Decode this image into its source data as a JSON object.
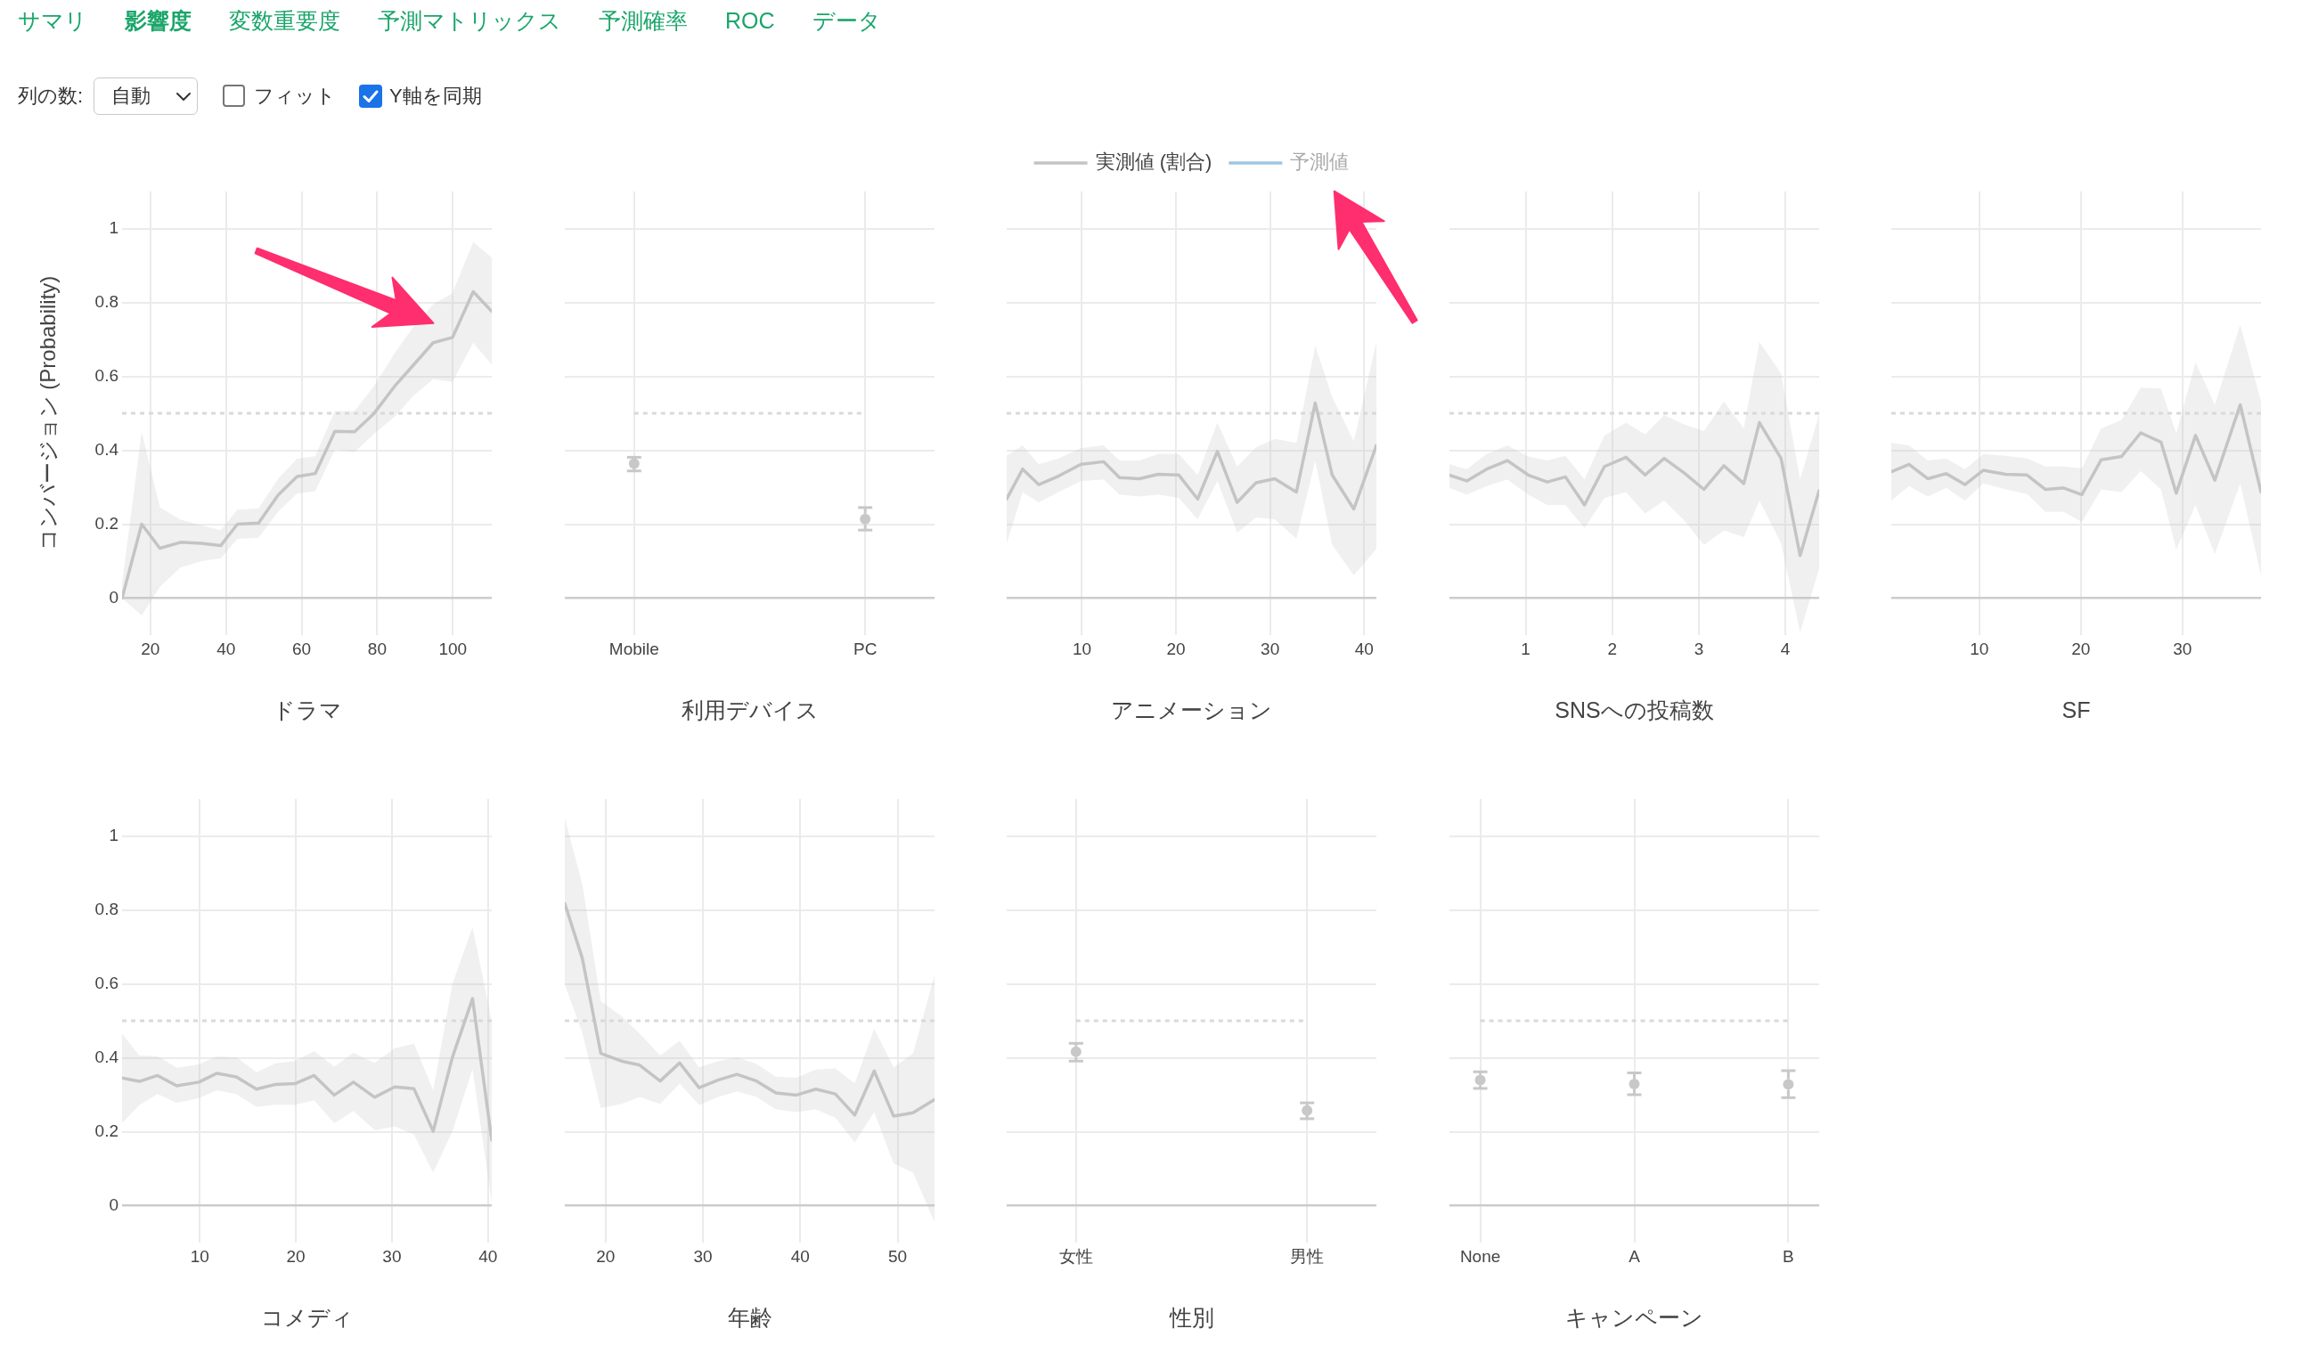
{
  "chart_data": [
    {
      "type": "other",
      "annotations": [
        "サマリ",
        "影響度",
        "変数重要度",
        "予測マトリックス",
        "予測確率",
        "ROC",
        "データ"
      ]
    },
    {
      "type": "other",
      "annotations": [
        "列の数:",
        "自動",
        "フィット",
        "Y軸を同期"
      ]
    },
    {
      "type": "line",
      "xlabel": "ドラマ",
      "ylabel": "コンバージョン (Probability)",
      "x": [
        12.5,
        17.7,
        22.5,
        28,
        33.5,
        38.6,
        43,
        48.6,
        53.8,
        58.8,
        63.6,
        68.8,
        74,
        79.1,
        84.6,
        89.7,
        94.8,
        99.9,
        105.4,
        110.3
      ],
      "series": [
        {
          "color": "#c4c4c4",
          "values": [
            0,
            0.2,
            0.135,
            0.151,
            0.148,
            0.142,
            0.2,
            0.203,
            0.279,
            0.329,
            0.337,
            0.451,
            0.45,
            0.499,
            0.573,
            0.632,
            0.691,
            0.705,
            0.829,
            0.776
          ],
          "lower": [
            0,
            -0.047,
            0.031,
            0.083,
            0.1,
            0.108,
            0.16,
            0.163,
            0.234,
            0.283,
            0.289,
            0.402,
            0.395,
            0.444,
            0.491,
            0.549,
            0.592,
            0.585,
            0.691,
            0.632
          ],
          "upper": [
            0.04,
            0.45,
            0.246,
            0.212,
            0.197,
            0.184,
            0.239,
            0.243,
            0.323,
            0.377,
            0.384,
            0.506,
            0.506,
            0.573,
            0.662,
            0.736,
            0.795,
            0.825,
            0.963,
            0.921
          ]
        }
      ],
      "xlim": [
        12.5,
        110.3
      ],
      "xticks": [
        20,
        40,
        60,
        80,
        100
      ],
      "ylim": [
        -0.1,
        1.1
      ],
      "yticks": [
        0,
        0.2,
        0.4,
        0.6,
        0.8,
        1
      ],
      "grid": true,
      "ref_lines": [
        {
          "axis": "y",
          "value": 0.5,
          "color": "#d9d9d9",
          "line_style": "dotted"
        }
      ]
    },
    {
      "type": "scatter",
      "xlabel": "利用デバイス",
      "categories": [
        "Mobile",
        "PC"
      ],
      "values": [
        0.364,
        0.214
      ],
      "errors": [
        [
          0.344,
          0.381
        ],
        [
          0.184,
          0.245
        ]
      ],
      "color": "#c8c8c8",
      "marker": "circle",
      "ylim": [
        -0.1,
        1.1
      ],
      "yticks": [
        0,
        0.2,
        0.4,
        0.6,
        0.8,
        1
      ],
      "tick_labels": "x",
      "grid": true,
      "ref_lines": [
        {
          "axis": "y",
          "value": 0.5,
          "color": "#d9d9d9",
          "line_style": "dotted"
        }
      ]
    },
    {
      "type": "line",
      "xlabel": "アニメーション",
      "legend": "top",
      "x": [
        2,
        3.7,
        5.4,
        7.5,
        9.9,
        12.3,
        14,
        16.1,
        18.1,
        20.3,
        22.3,
        24.4,
        26.5,
        28.5,
        30.5,
        32.8,
        34.8,
        36.6,
        38.9,
        41.3
      ],
      "series": [
        {
          "name": "実測値 (割合)",
          "color": "#c4c4c4",
          "values": [
            0.268,
            0.349,
            0.307,
            0.33,
            0.362,
            0.369,
            0.326,
            0.323,
            0.335,
            0.333,
            0.268,
            0.397,
            0.259,
            0.312,
            0.323,
            0.287,
            0.528,
            0.333,
            0.241,
            0.413
          ],
          "lower": [
            0.149,
            0.287,
            0.259,
            0.287,
            0.317,
            0.321,
            0.28,
            0.275,
            0.28,
            0.271,
            0.213,
            0.317,
            0.177,
            0.218,
            0.213,
            0.161,
            0.372,
            0.144,
            0.062,
            0.133
          ],
          "upper": [
            0.385,
            0.413,
            0.362,
            0.378,
            0.406,
            0.413,
            0.372,
            0.372,
            0.39,
            0.39,
            0.333,
            0.475,
            0.356,
            0.408,
            0.431,
            0.42,
            0.683,
            0.544,
            0.424,
            0.693
          ]
        },
        {
          "name": "予測値",
          "color": "#9fc6e2",
          "values": [
            null,
            null,
            null,
            null,
            null,
            null,
            null,
            null,
            null,
            null,
            null,
            null,
            null,
            null,
            null,
            null,
            null,
            null,
            null,
            null
          ]
        }
      ],
      "xlim": [
        2,
        41.3
      ],
      "xticks": [
        10,
        20,
        30,
        40
      ],
      "ylim": [
        -0.1,
        1.1
      ],
      "yticks": [
        0,
        0.2,
        0.4,
        0.6,
        0.8,
        1
      ],
      "tick_labels": "x",
      "grid": true,
      "ref_lines": [
        {
          "axis": "y",
          "value": 0.5,
          "color": "#d9d9d9",
          "line_style": "dotted"
        }
      ]
    },
    {
      "type": "line",
      "xlabel": "SNSへの投稿数",
      "x": [
        0.12,
        0.32,
        0.55,
        0.79,
        1.03,
        1.25,
        1.46,
        1.68,
        1.91,
        2.16,
        2.38,
        2.6,
        2.83,
        3.06,
        3.29,
        3.52,
        3.7,
        3.95,
        4.17,
        4.39
      ],
      "series": [
        {
          "color": "#c4c4c4",
          "values": [
            0.333,
            0.317,
            0.349,
            0.372,
            0.333,
            0.314,
            0.328,
            0.252,
            0.356,
            0.381,
            0.333,
            0.378,
            0.339,
            0.294,
            0.358,
            0.31,
            0.475,
            0.378,
            0.115,
            0.291
          ],
          "lower": [
            0.298,
            0.28,
            0.303,
            0.321,
            0.28,
            0.252,
            0.252,
            0.19,
            0.271,
            0.287,
            0.229,
            0.264,
            0.211,
            0.144,
            0.183,
            0.165,
            0.264,
            0.149,
            -0.092,
            0.08
          ],
          "upper": [
            0.362,
            0.349,
            0.39,
            0.413,
            0.383,
            0.372,
            0.385,
            0.321,
            0.44,
            0.475,
            0.443,
            0.495,
            0.47,
            0.452,
            0.532,
            0.459,
            0.693,
            0.608,
            0.321,
            0.498
          ]
        }
      ],
      "xlim": [
        0.12,
        4.39
      ],
      "xticks": [
        1,
        2,
        3,
        4
      ],
      "ylim": [
        -0.1,
        1.1
      ],
      "yticks": [
        0,
        0.2,
        0.4,
        0.6,
        0.8,
        1
      ],
      "tick_labels": "x",
      "grid": true,
      "ref_lines": [
        {
          "axis": "y",
          "value": 0.5,
          "color": "#d9d9d9",
          "line_style": "dotted"
        }
      ]
    },
    {
      "type": "line",
      "xlabel": "SF",
      "x": [
        1.33,
        3.08,
        4.92,
        6.75,
        8.58,
        10.4,
        12.6,
        14.7,
        16.5,
        18.3,
        20.1,
        22,
        24,
        25.9,
        27.9,
        29.4,
        31.3,
        33.2,
        35.7,
        37.75
      ],
      "series": [
        {
          "color": "#c4c4c4",
          "values": [
            0.342,
            0.362,
            0.323,
            0.337,
            0.307,
            0.346,
            0.335,
            0.333,
            0.294,
            0.298,
            0.28,
            0.374,
            0.383,
            0.447,
            0.422,
            0.284,
            0.44,
            0.319,
            0.523,
            0.287
          ],
          "lower": [
            0.264,
            0.303,
            0.275,
            0.298,
            0.264,
            0.31,
            0.294,
            0.282,
            0.234,
            0.234,
            0.206,
            0.294,
            0.287,
            0.344,
            0.294,
            0.131,
            0.252,
            0.119,
            0.31,
            0.062
          ],
          "upper": [
            0.42,
            0.413,
            0.372,
            0.378,
            0.349,
            0.39,
            0.385,
            0.378,
            0.356,
            0.356,
            0.351,
            0.459,
            0.482,
            0.569,
            0.567,
            0.445,
            0.638,
            0.523,
            0.739,
            0.532
          ]
        }
      ],
      "xlim": [
        1.33,
        37.75
      ],
      "xticks": [
        10,
        20,
        30
      ],
      "ylim": [
        -0.1,
        1.1
      ],
      "yticks": [
        0,
        0.2,
        0.4,
        0.6,
        0.8,
        1
      ],
      "tick_labels": "x",
      "grid": true,
      "ref_lines": [
        {
          "axis": "y",
          "value": 0.5,
          "color": "#d9d9d9",
          "line_style": "dotted"
        }
      ]
    },
    {
      "type": "line",
      "xlabel": "コメディ",
      "x": [
        1.9,
        3.7,
        5.6,
        7.6,
        9.9,
        11.8,
        13.8,
        15.9,
        17.9,
        19.9,
        21.9,
        24,
        26,
        28.2,
        30.3,
        32.3,
        34.3,
        36.3,
        38.4,
        40.4
      ],
      "series": [
        {
          "color": "#c4c4c4",
          "values": [
            0.345,
            0.336,
            0.352,
            0.324,
            0.334,
            0.358,
            0.348,
            0.315,
            0.328,
            0.33,
            0.352,
            0.299,
            0.334,
            0.293,
            0.321,
            0.316,
            0.201,
            0.401,
            0.56,
            0.177
          ],
          "lower": [
            0.223,
            0.272,
            0.302,
            0.278,
            0.291,
            0.312,
            0.302,
            0.267,
            0.273,
            0.272,
            0.285,
            0.223,
            0.256,
            0.204,
            0.214,
            0.193,
            0.089,
            0.201,
            0.369,
            0.007
          ],
          "upper": [
            0.465,
            0.406,
            0.404,
            0.373,
            0.382,
            0.404,
            0.401,
            0.361,
            0.385,
            0.391,
            0.418,
            0.376,
            0.413,
            0.386,
            0.426,
            0.438,
            0.312,
            0.599,
            0.753,
            0.498
          ]
        }
      ],
      "xlim": [
        1.9,
        40.4
      ],
      "xticks": [
        10,
        20,
        30,
        40
      ],
      "ylim": [
        -0.1,
        1.1
      ],
      "yticks": [
        0,
        0.2,
        0.4,
        0.6,
        0.8,
        1
      ],
      "grid": true,
      "ref_lines": [
        {
          "axis": "y",
          "value": 0.5,
          "color": "#d9d9d9",
          "line_style": "dotted"
        }
      ]
    },
    {
      "type": "line",
      "xlabel": "年齢",
      "x": [
        15.8,
        17.6,
        19.5,
        21.6,
        23.5,
        25.6,
        27.6,
        29.6,
        31.6,
        33.5,
        35.5,
        37.5,
        39.6,
        41.6,
        43.6,
        45.6,
        47.6,
        49.6,
        51.6,
        53.8
      ],
      "series": [
        {
          "color": "#c4c4c4",
          "values": [
            0.817,
            0.669,
            0.412,
            0.391,
            0.38,
            0.337,
            0.386,
            0.319,
            0.34,
            0.355,
            0.337,
            0.305,
            0.299,
            0.315,
            0.302,
            0.245,
            0.364,
            0.242,
            0.251,
            0.287
          ],
          "lower": [
            0.597,
            0.468,
            0.264,
            0.275,
            0.294,
            0.275,
            0.33,
            0.272,
            0.294,
            0.309,
            0.294,
            0.26,
            0.253,
            0.26,
            0.238,
            0.171,
            0.253,
            0.114,
            0.089,
            -0.045
          ],
          "upper": [
            1.048,
            0.869,
            0.553,
            0.513,
            0.465,
            0.406,
            0.446,
            0.374,
            0.391,
            0.401,
            0.383,
            0.349,
            0.346,
            0.368,
            0.371,
            0.331,
            0.478,
            0.374,
            0.412,
            0.624
          ]
        }
      ],
      "xlim": [
        15.8,
        53.8
      ],
      "xticks": [
        20,
        30,
        40,
        50
      ],
      "ylim": [
        -0.1,
        1.1
      ],
      "yticks": [
        0,
        0.2,
        0.4,
        0.6,
        0.8,
        1
      ],
      "tick_labels": "x",
      "grid": true,
      "ref_lines": [
        {
          "axis": "y",
          "value": 0.5,
          "color": "#d9d9d9",
          "line_style": "dotted"
        }
      ]
    },
    {
      "type": "scatter",
      "xlabel": "性別",
      "categories": [
        "女性",
        "男性"
      ],
      "values": [
        0.416,
        0.257
      ],
      "errors": [
        [
          0.391,
          0.439
        ],
        [
          0.235,
          0.278
        ]
      ],
      "color": "#c8c8c8",
      "marker": "circle",
      "ylim": [
        -0.1,
        1.1
      ],
      "yticks": [
        0,
        0.2,
        0.4,
        0.6,
        0.8,
        1
      ],
      "tick_labels": "x",
      "grid": true,
      "ref_lines": [
        {
          "axis": "y",
          "value": 0.5,
          "color": "#d9d9d9",
          "line_style": "dotted"
        }
      ]
    },
    {
      "type": "scatter",
      "xlabel": "キャンペーン",
      "categories": [
        "None",
        "A",
        "B"
      ],
      "values": [
        0.34,
        0.329,
        0.328
      ],
      "errors": [
        [
          0.317,
          0.362
        ],
        [
          0.3,
          0.359
        ],
        [
          0.292,
          0.365
        ]
      ],
      "color": "#c8c8c8",
      "marker": "circle",
      "ylim": [
        -0.1,
        1.1
      ],
      "yticks": [
        0,
        0.2,
        0.4,
        0.6,
        0.8,
        1
      ],
      "tick_labels": "x",
      "grid": true,
      "ref_lines": [
        {
          "axis": "y",
          "value": 0.5,
          "color": "#d9d9d9",
          "line_style": "dotted"
        }
      ]
    }
  ]
}
